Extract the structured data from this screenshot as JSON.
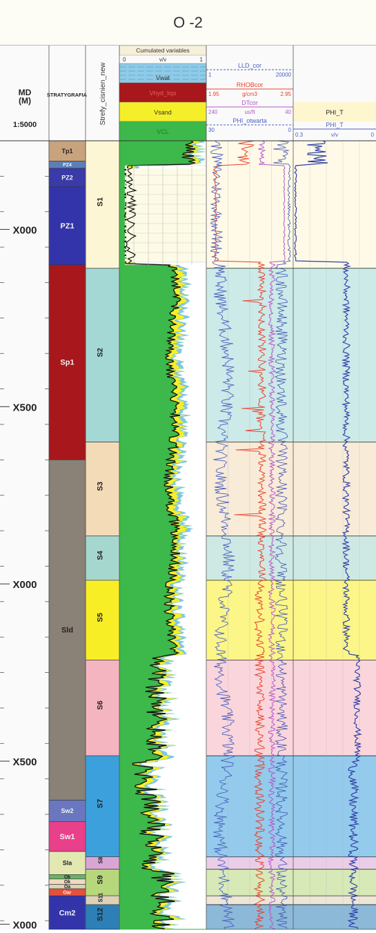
{
  "title": "O -2",
  "chart_data": {
    "type": "well_log",
    "depth_track": {
      "header_top": "MD",
      "header_unit": "(M)",
      "scale": "1:5000",
      "depth_labels": [
        "X000",
        "X500",
        "X000",
        "X500",
        "X000"
      ]
    },
    "stratigraphy": {
      "header": "STRATYGRAFIA",
      "units": [
        {
          "label": "Tp1",
          "color": "#c9a27e",
          "top": 0,
          "bottom": 0.115
        },
        {
          "label": "PZ4",
          "color": "#5b7fb8",
          "top": 0.115,
          "bottom": 0.155
        },
        {
          "label": "PZ2",
          "color": "#3a3aa8",
          "top": 0.155,
          "bottom": 0.26
        },
        {
          "label": "PZ1",
          "color": "#3434aa",
          "top": 0.26,
          "bottom": 0.7
        },
        {
          "label": "Sp1",
          "color": "#a8171b",
          "top": 0.7,
          "bottom": 1.8
        },
        {
          "label": "Sld",
          "color": "#8a8177",
          "top": 1.8,
          "bottom": 3.72
        },
        {
          "label": "Sw2",
          "color": "#6a77c0",
          "top": 3.72,
          "bottom": 3.84
        },
        {
          "label": "Sw1",
          "color": "#e8408a",
          "top": 3.84,
          "bottom": 4.01
        },
        {
          "label": "Sla",
          "color": "#e3e8b2",
          "top": 4.01,
          "bottom": 4.14
        },
        {
          "label": "Ok",
          "color": "#6bb26a",
          "top": 4.14,
          "bottom": 4.165
        },
        {
          "label": "Ok",
          "color": "#f0d9c2",
          "top": 4.165,
          "bottom": 4.195
        },
        {
          "label": "Oa",
          "color": "#dcd4b6",
          "top": 4.195,
          "bottom": 4.22
        },
        {
          "label": "Oar",
          "color": "#e4503a",
          "top": 4.22,
          "bottom": 4.26
        },
        {
          "label": "Cm2",
          "color": "#3434aa",
          "top": 4.26,
          "bottom": 4.45
        }
      ]
    },
    "zones": {
      "header": "Strefy_cisnien_new",
      "items": [
        {
          "label": "S1",
          "color": "#fdf6d4",
          "top": 0,
          "bottom": 0.72
        },
        {
          "label": "S2",
          "color": "#a3d8d5",
          "top": 0.72,
          "bottom": 1.7
        },
        {
          "label": "S3",
          "color": "#f3dbb7",
          "top": 1.7,
          "bottom": 2.23
        },
        {
          "label": "S4",
          "color": "#a6d7ce",
          "top": 2.23,
          "bottom": 2.48
        },
        {
          "label": "S5",
          "color": "#f8ee25",
          "top": 2.48,
          "bottom": 2.93
        },
        {
          "label": "S6",
          "color": "#f5b5c0",
          "top": 2.93,
          "bottom": 3.47
        },
        {
          "label": "S7",
          "color": "#3ca0dc",
          "top": 3.47,
          "bottom": 4.04
        },
        {
          "label": "S8",
          "color": "#d9a6d4",
          "top": 4.04,
          "bottom": 4.11
        },
        {
          "label": "S9",
          "color": "#b7d77c",
          "top": 4.11,
          "bottom": 4.26
        },
        {
          "label": "S11",
          "color": "#dcd2b6",
          "top": 4.26,
          "bottom": 4.31
        },
        {
          "label": "S12",
          "color": "#2d7fb8",
          "top": 4.31,
          "bottom": 4.45
        }
      ]
    },
    "cumulated_variables": {
      "title": "Cumulated variables",
      "scale": {
        "min": "0",
        "unit": "v/v",
        "max": "1"
      },
      "components": [
        "Vwat",
        "Vhyd_liqs",
        "Vsand",
        "VCL"
      ]
    },
    "track3": {
      "curves": [
        {
          "name": "LLD_cor",
          "min": "1",
          "unit": "",
          "max": "20000",
          "color": "#4a5fc1"
        },
        {
          "name": "RHOBcor",
          "min": "1.95",
          "unit": "g/cm3",
          "max": "2.95",
          "color": "#e8412d"
        },
        {
          "name": "DTcor",
          "min": "240",
          "unit": "us/ft",
          "max": "40",
          "color": "#b455c9"
        },
        {
          "name": "PHI_otwarta",
          "min": "30",
          "unit": "",
          "max": "0",
          "color": "#4a5fc1"
        }
      ]
    },
    "track4": {
      "curves": [
        {
          "name": "PHI_T",
          "min": "",
          "unit": "",
          "max": "",
          "color": "#4a5fc1"
        },
        {
          "name": "PHI_T",
          "min": "0.3",
          "unit": "v/v",
          "max": "0",
          "color": "#4a5fc1"
        }
      ]
    }
  }
}
